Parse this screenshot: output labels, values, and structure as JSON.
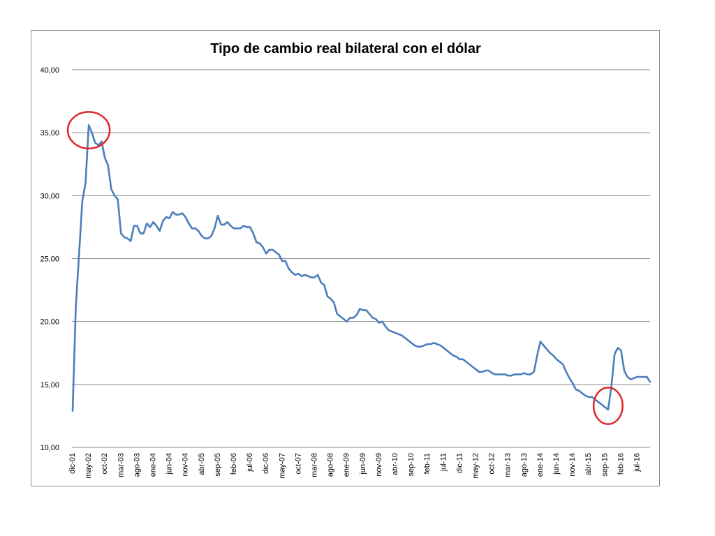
{
  "chart_data": {
    "type": "line",
    "title": "Tipo de cambio real bilateral con el dólar",
    "xlabel": "",
    "ylabel": "",
    "ylim": [
      10,
      40
    ],
    "yticks": [
      "10,00",
      "15,00",
      "20,00",
      "25,00",
      "30,00",
      "35,00",
      "40,00"
    ],
    "ytick_values": [
      10,
      15,
      20,
      25,
      30,
      35,
      40
    ],
    "x_tick_labels": [
      "dic-01",
      "may-02",
      "oct-02",
      "mar-03",
      "ago-03",
      "ene-04",
      "jun-04",
      "nov-04",
      "abr-05",
      "sep-05",
      "feb-06",
      "jul-06",
      "dic-06",
      "may-07",
      "oct-07",
      "mar-08",
      "ago-08",
      "ene-09",
      "jun-09",
      "nov-09",
      "abr-10",
      "sep-10",
      "feb-11",
      "jul-11",
      "dic-11",
      "may-12",
      "oct-12",
      "mar-13",
      "ago-13",
      "ene-14",
      "jun-14",
      "nov-14",
      "abr-15",
      "sep-15",
      "feb-16",
      "jul-16"
    ],
    "x_tick_month_offsets": [
      0,
      5,
      10,
      15,
      20,
      25,
      30,
      35,
      40,
      45,
      50,
      55,
      60,
      65,
      70,
      75,
      80,
      85,
      90,
      95,
      100,
      105,
      110,
      115,
      120,
      125,
      130,
      135,
      140,
      145,
      150,
      155,
      160,
      165,
      170,
      175
    ],
    "grid": true,
    "legend": "none",
    "line_color": "#4a7ebb",
    "series": [
      {
        "start": "dic-01",
        "frequency": "monthly",
        "values": [
          12.9,
          21.2,
          25.3,
          29.6,
          31.0,
          35.6,
          35.0,
          34.2,
          34.0,
          34.3,
          33.0,
          32.4,
          30.5,
          30.0,
          29.7,
          27.0,
          26.7,
          26.6,
          26.4,
          27.6,
          27.6,
          27.0,
          27.0,
          27.8,
          27.5,
          27.9,
          27.6,
          27.2,
          28.0,
          28.3,
          28.2,
          28.7,
          28.5,
          28.5,
          28.6,
          28.3,
          27.8,
          27.4,
          27.4,
          27.2,
          26.8,
          26.6,
          26.6,
          26.8,
          27.4,
          28.4,
          27.7,
          27.7,
          27.9,
          27.6,
          27.4,
          27.4,
          27.4,
          27.6,
          27.5,
          27.5,
          27.0,
          26.3,
          26.2,
          25.9,
          25.4,
          25.7,
          25.7,
          25.5,
          25.3,
          24.8,
          24.8,
          24.2,
          23.9,
          23.7,
          23.8,
          23.6,
          23.7,
          23.6,
          23.5,
          23.5,
          23.7,
          23.1,
          22.9,
          22.0,
          21.8,
          21.5,
          20.6,
          20.4,
          20.2,
          20.0,
          20.3,
          20.3,
          20.5,
          21.0,
          20.9,
          20.9,
          20.6,
          20.3,
          20.2,
          19.9,
          20.0,
          19.6,
          19.3,
          19.2,
          19.1,
          19.0,
          18.9,
          18.7,
          18.5,
          18.3,
          18.1,
          18.0,
          18.0,
          18.1,
          18.2,
          18.2,
          18.3,
          18.2,
          18.1,
          17.9,
          17.7,
          17.5,
          17.3,
          17.2,
          17.0,
          17.0,
          16.8,
          16.6,
          16.4,
          16.2,
          16.0,
          16.0,
          16.1,
          16.1,
          15.9,
          15.8,
          15.8,
          15.8,
          15.8,
          15.7,
          15.7,
          15.8,
          15.8,
          15.8,
          15.9,
          15.8,
          15.8,
          16.0,
          17.3,
          18.4,
          18.1,
          17.8,
          17.5,
          17.3,
          17.0,
          16.8,
          16.6,
          16.0,
          15.5,
          15.1,
          14.6,
          14.5,
          14.3,
          14.1,
          14.0,
          14.0,
          13.8,
          13.6,
          13.4,
          13.2,
          13.0,
          14.8,
          17.4,
          17.9,
          17.7,
          16.1,
          15.6,
          15.4,
          15.5,
          15.6,
          15.6,
          15.6,
          15.6,
          15.2
        ]
      }
    ],
    "annotations": [
      {
        "type": "circle",
        "color": "#e0262a",
        "x_month_offset": 5,
        "y": 35.2,
        "rx_months": 6.5,
        "ry_value": 1.45
      },
      {
        "type": "circle",
        "color": "#e0262a",
        "x_month_offset": 166,
        "y": 13.3,
        "rx_months": 4.5,
        "ry_value": 1.45
      }
    ]
  }
}
